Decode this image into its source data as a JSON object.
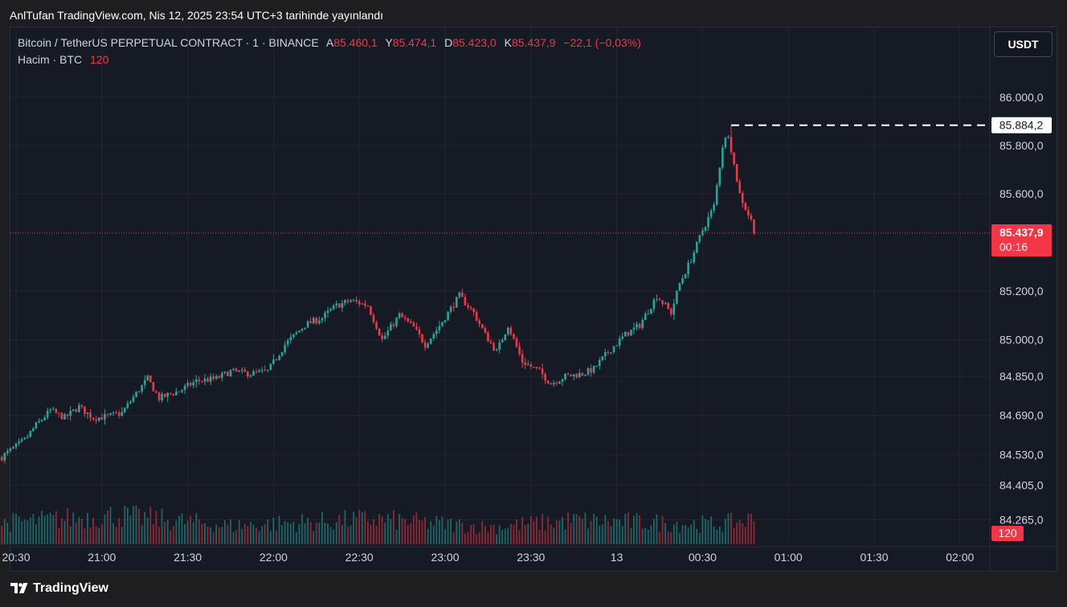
{
  "header": {
    "published": "AnlTufan TradingView.com, Nis 12, 2025 23:54 UTC+3 tarihinde yayınlandı"
  },
  "legend": {
    "symbol": "Bitcoin / TetherUS PERPETUAL CONTRACT · 1 · BINANCE",
    "open_label": "A",
    "open": "85.460,1",
    "high_label": "Y",
    "high": "85.474,1",
    "low_label": "D",
    "low": "85.423,0",
    "close_label": "K",
    "close": "85.437,9",
    "change": "−22,1 (−0,03%)",
    "volume_label": "Hacim · BTC",
    "volume_value": "120"
  },
  "toolbar": {
    "currency": "USDT"
  },
  "footer": {
    "brand": "TradingView"
  },
  "colors": {
    "up": "#26a69a",
    "down": "#f23645",
    "background": "#161a25",
    "grid": "#232632",
    "text": "#d1d4dc"
  },
  "chart_data": {
    "type": "candlestick",
    "interval": "1m",
    "x_axis": {
      "tick_labels": [
        "20:30",
        "21:00",
        "21:30",
        "22:00",
        "22:30",
        "23:00",
        "23:30",
        "13",
        "00:30",
        "01:00",
        "01:30",
        "02:00"
      ],
      "range": [
        "20:23",
        "02:08"
      ]
    },
    "y_axis": {
      "scale": "log",
      "tick_labels": [
        "86.000,0",
        "85.800,0",
        "85.600,0",
        "85.200,0",
        "85.000,0",
        "84.850,0",
        "84.690,0",
        "84.530,0",
        "84.405,0",
        "84.265,0"
      ],
      "tick_values": [
        86000.0,
        85800.0,
        85600.0,
        85200.0,
        85000.0,
        84850.0,
        84690.0,
        84530.0,
        84405.0,
        84265.0
      ]
    },
    "grid": true,
    "price_line": {
      "value": 85437.9,
      "label": "85.437,9",
      "countdown": "00:16"
    },
    "high_marker": {
      "value": 85884.2,
      "label": "85.884,2"
    },
    "volume_axis_label": "120",
    "anchors": [
      [
        "20:25",
        84520
      ],
      [
        "20:33",
        84590
      ],
      [
        "20:37",
        84650
      ],
      [
        "20:42",
        84710
      ],
      [
        "20:47",
        84680
      ],
      [
        "20:52",
        84725
      ],
      [
        "20:57",
        84680
      ],
      [
        "21:02",
        84685
      ],
      [
        "21:07",
        84700
      ],
      [
        "21:12",
        84780
      ],
      [
        "21:16",
        84840
      ],
      [
        "21:20",
        84760
      ],
      [
        "21:27",
        84790
      ],
      [
        "21:33",
        84830
      ],
      [
        "21:40",
        84840
      ],
      [
        "21:45",
        84870
      ],
      [
        "21:52",
        84860
      ],
      [
        "21:58",
        84870
      ],
      [
        "22:04",
        84980
      ],
      [
        "22:11",
        85060
      ],
      [
        "22:17",
        85090
      ],
      [
        "22:22",
        85140
      ],
      [
        "22:27",
        85160
      ],
      [
        "22:33",
        85140
      ],
      [
        "22:38",
        85000
      ],
      [
        "22:44",
        85100
      ],
      [
        "22:49",
        85050
      ],
      [
        "22:53",
        84980
      ],
      [
        "22:57",
        85040
      ],
      [
        "23:05",
        85180
      ],
      [
        "23:10",
        85110
      ],
      [
        "23:14",
        85020
      ],
      [
        "23:18",
        84950
      ],
      [
        "23:22",
        85060
      ],
      [
        "23:27",
        84910
      ],
      [
        "23:33",
        84870
      ],
      [
        "23:37",
        84820
      ],
      [
        "23:42",
        84850
      ],
      [
        "23:48",
        84860
      ],
      [
        "23:52",
        84880
      ],
      [
        "23:57",
        84950
      ],
      [
        "00:03",
        85020
      ],
      [
        "00:08",
        85060
      ],
      [
        "00:14",
        85180
      ],
      [
        "00:19",
        85110
      ],
      [
        "00:22",
        85230
      ],
      [
        "00:26",
        85330
      ],
      [
        "00:30",
        85450
      ],
      [
        "00:34",
        85550
      ],
      [
        "00:37",
        85800
      ],
      [
        "00:39",
        85850
      ],
      [
        "00:41",
        85720
      ],
      [
        "00:43",
        85600
      ],
      [
        "00:45",
        85540
      ],
      [
        "00:47",
        85490
      ],
      [
        "00:48",
        85437.9
      ]
    ],
    "anchor_note_omit": true,
    "volume_anchors": [
      [
        0,
        16
      ],
      [
        40,
        22
      ],
      [
        80,
        14
      ],
      [
        130,
        19
      ],
      [
        170,
        13
      ],
      [
        200,
        18
      ],
      [
        250,
        15
      ],
      [
        280,
        24
      ],
      [
        300,
        15
      ],
      [
        316,
        46
      ],
      [
        330,
        28
      ],
      [
        345,
        60
      ],
      [
        355,
        40
      ],
      [
        370,
        95
      ],
      [
        380,
        100
      ],
      [
        384,
        70
      ],
      [
        390,
        36
      ],
      [
        400,
        12
      ]
    ]
  }
}
